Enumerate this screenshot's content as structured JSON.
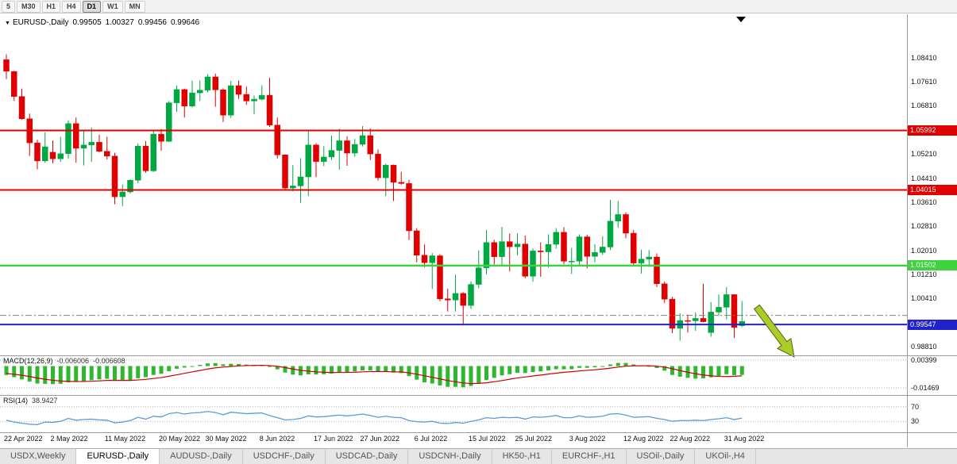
{
  "toolbar": {
    "periods": [
      "5",
      "M30",
      "H1",
      "H4",
      "D1",
      "W1",
      "MN"
    ],
    "active": "D1"
  },
  "header": {
    "dropdown": "▼",
    "symbol": "EURUSD-,Daily",
    "open": "0.99505",
    "high": "1.00327",
    "low": "0.99456",
    "close": "0.99646"
  },
  "chart_data": {
    "type": "candlestick",
    "symbol": "EURUSD-,Daily",
    "price_ticks": [
      1.0841,
      1.0761,
      1.0681,
      1.0521,
      1.0441,
      1.0361,
      1.0281,
      1.0201,
      1.0121,
      1.0041,
      0.9881
    ],
    "levels": [
      {
        "label": "1.05992",
        "value": 1.05992,
        "color": "#e00000",
        "width": 2,
        "style": "solid",
        "badge": true
      },
      {
        "label": "1.04015",
        "value": 1.04015,
        "color": "#e00000",
        "width": 2,
        "style": "solid",
        "badge": true
      },
      {
        "label": "1.01502",
        "value": 1.01502,
        "color": "#3fd23f",
        "width": 2.5,
        "style": "solid",
        "badge": true
      },
      {
        "label": "0.99547",
        "value": 0.99547,
        "color": "#2222cc",
        "width": 2,
        "style": "solid",
        "badge": true
      },
      {
        "label": "",
        "value": 0.9985,
        "color": "#808080",
        "width": 1,
        "style": "dashdot",
        "badge": false
      }
    ],
    "x_labels": [
      {
        "text": "22 Apr 2022",
        "i": 0
      },
      {
        "text": "2 May 2022",
        "i": 6
      },
      {
        "text": "11 May 2022",
        "i": 13
      },
      {
        "text": "20 May 2022",
        "i": 20
      },
      {
        "text": "30 May 2022",
        "i": 26
      },
      {
        "text": "8 Jun 2022",
        "i": 33
      },
      {
        "text": "17 Jun 2022",
        "i": 40
      },
      {
        "text": "27 Jun 2022",
        "i": 46
      },
      {
        "text": "6 Jul 2022",
        "i": 53
      },
      {
        "text": "15 Jul 2022",
        "i": 60
      },
      {
        "text": "25 Jul 2022",
        "i": 66
      },
      {
        "text": "3 Aug 2022",
        "i": 73
      },
      {
        "text": "12 Aug 2022",
        "i": 80
      },
      {
        "text": "22 Aug 2022",
        "i": 86
      },
      {
        "text": "31 Aug 2022",
        "i": 93
      }
    ],
    "candles": [
      [
        1.0834,
        1.0852,
        1.077,
        1.0796
      ],
      [
        1.0795,
        1.0797,
        1.0697,
        1.0712
      ],
      [
        1.0712,
        1.0738,
        1.0635,
        1.0638
      ],
      [
        1.0638,
        1.0655,
        1.0514,
        1.0558
      ],
      [
        1.0558,
        1.0568,
        1.047,
        1.0498
      ],
      [
        1.0498,
        1.0593,
        1.0492,
        1.0545
      ],
      [
        1.0527,
        1.0566,
        1.049,
        1.0505
      ],
      [
        1.0505,
        1.0578,
        1.0495,
        1.0522
      ],
      [
        1.0522,
        1.0632,
        1.0506,
        1.0622
      ],
      [
        1.0622,
        1.0642,
        1.0492,
        1.054
      ],
      [
        1.054,
        1.0599,
        1.0483,
        1.0551
      ],
      [
        1.0551,
        1.0609,
        1.0495,
        1.056
      ],
      [
        1.056,
        1.0585,
        1.0526,
        1.053
      ],
      [
        1.053,
        1.0578,
        1.0503,
        1.0514
      ],
      [
        1.0514,
        1.0525,
        1.0354,
        1.0379
      ],
      [
        1.0379,
        1.042,
        1.0348,
        1.0395
      ],
      [
        1.0395,
        1.0437,
        1.039,
        1.0434
      ],
      [
        1.0434,
        1.0556,
        1.0424,
        1.0547
      ],
      [
        1.0547,
        1.0564,
        1.0459,
        1.0465
      ],
      [
        1.0465,
        1.0598,
        1.0461,
        1.0587
      ],
      [
        1.0587,
        1.0604,
        1.0532,
        1.0563
      ],
      [
        1.0563,
        1.0697,
        1.0561,
        1.0691
      ],
      [
        1.0691,
        1.0748,
        1.0661,
        1.0735
      ],
      [
        1.0735,
        1.0738,
        1.0642,
        1.068
      ],
      [
        1.068,
        1.0764,
        1.0676,
        1.0724
      ],
      [
        1.0724,
        1.0765,
        1.0697,
        1.0733
      ],
      [
        1.0733,
        1.0786,
        1.0726,
        1.0777
      ],
      [
        1.0777,
        1.0788,
        1.0678,
        1.0734
      ],
      [
        1.0734,
        1.0739,
        1.0627,
        1.065
      ],
      [
        1.065,
        1.0764,
        1.0641,
        1.0748
      ],
      [
        1.0748,
        1.0765,
        1.0704,
        1.0719
      ],
      [
        1.0719,
        1.0745,
        1.0684,
        1.0697
      ],
      [
        1.0697,
        1.0715,
        1.0653,
        1.0703
      ],
      [
        1.0703,
        1.0749,
        1.0699,
        1.0716
      ],
      [
        1.0716,
        1.0774,
        1.0611,
        1.0617
      ],
      [
        1.0617,
        1.0642,
        1.0506,
        1.0518
      ],
      [
        1.0518,
        1.052,
        1.0399,
        1.0408
      ],
      [
        1.0408,
        1.0484,
        1.0397,
        1.0415
      ],
      [
        1.0415,
        1.0507,
        1.0359,
        1.0445
      ],
      [
        1.0445,
        1.0601,
        1.0381,
        1.0551
      ],
      [
        1.0551,
        1.0557,
        1.0444,
        1.0496
      ],
      [
        1.0496,
        1.0547,
        1.0481,
        1.0511
      ],
      [
        1.0511,
        1.0582,
        1.0501,
        1.0533
      ],
      [
        1.0533,
        1.0605,
        1.0469,
        1.0565
      ],
      [
        1.0565,
        1.058,
        1.0482,
        1.0524
      ],
      [
        1.0524,
        1.0571,
        1.0512,
        1.0553
      ],
      [
        1.0553,
        1.0614,
        1.0546,
        1.0582
      ],
      [
        1.0582,
        1.0606,
        1.0501,
        1.0521
      ],
      [
        1.0521,
        1.0536,
        1.0433,
        1.0442
      ],
      [
        1.0442,
        1.0489,
        1.0381,
        1.0484
      ],
      [
        1.0484,
        1.0486,
        1.0365,
        1.0427
      ],
      [
        1.0427,
        1.0462,
        1.0419,
        1.0423
      ],
      [
        1.0423,
        1.0435,
        1.0235,
        1.0266
      ],
      [
        1.0266,
        1.0275,
        1.0161,
        1.0185
      ],
      [
        1.0185,
        1.022,
        1.0145,
        1.016
      ],
      [
        1.016,
        1.0192,
        1.0072,
        1.0183
      ],
      [
        1.0183,
        1.0188,
        1.0032,
        1.004
      ],
      [
        1.004,
        1.0074,
        0.9998,
        1.0036
      ],
      [
        1.0036,
        1.012,
        0.9998,
        1.0058
      ],
      [
        1.0058,
        1.0062,
        0.9952,
        1.0018
      ],
      [
        1.0018,
        1.0098,
        1.0006,
        1.0088
      ],
      [
        1.0088,
        1.0201,
        1.0075,
        1.0143
      ],
      [
        1.0143,
        1.0269,
        1.0121,
        1.0227
      ],
      [
        1.0227,
        1.0236,
        1.0154,
        1.018
      ],
      [
        1.018,
        1.0279,
        1.0151,
        1.023
      ],
      [
        1.023,
        1.0257,
        1.0131,
        1.0213
      ],
      [
        1.0213,
        1.0258,
        1.0184,
        1.0222
      ],
      [
        1.0222,
        1.025,
        1.0108,
        1.0115
      ],
      [
        1.0115,
        1.0207,
        1.0097,
        1.0199
      ],
      [
        1.0199,
        1.0228,
        1.0113,
        1.0196
      ],
      [
        1.0196,
        1.0254,
        1.0144,
        1.0221
      ],
      [
        1.0221,
        1.0275,
        1.0207,
        1.0261
      ],
      [
        1.0261,
        1.0278,
        1.0155,
        1.0165
      ],
      [
        1.0165,
        1.0209,
        1.0123,
        1.0165
      ],
      [
        1.0165,
        1.0254,
        1.0151,
        1.0246
      ],
      [
        1.0246,
        1.0253,
        1.0141,
        1.0181
      ],
      [
        1.0181,
        1.0221,
        1.0161,
        1.0194
      ],
      [
        1.0194,
        1.0248,
        1.0186,
        1.0212
      ],
      [
        1.0212,
        1.0369,
        1.0202,
        1.0298
      ],
      [
        1.0298,
        1.0365,
        1.0276,
        1.032
      ],
      [
        1.032,
        1.0327,
        1.0241,
        1.0258
      ],
      [
        1.0258,
        1.0269,
        1.0154,
        1.0159
      ],
      [
        1.0159,
        1.0203,
        1.0124,
        1.0172
      ],
      [
        1.0172,
        1.0202,
        1.0146,
        1.0179
      ],
      [
        1.0179,
        1.0191,
        1.0079,
        1.009
      ],
      [
        1.009,
        1.0097,
        1.0026,
        1.0039
      ],
      [
        1.0039,
        1.0046,
        0.9926,
        0.9942
      ],
      [
        0.9942,
        0.9992,
        0.9901,
        0.9968
      ],
      [
        0.9968,
        0.9988,
        0.9928,
        0.9967
      ],
      [
        0.9967,
        0.9995,
        0.9934,
        0.9975
      ],
      [
        0.9975,
        1.009,
        0.9962,
        0.9964
      ],
      [
        0.9928,
        1.0029,
        0.9914,
        0.9996
      ],
      [
        0.9996,
        1.0055,
        0.9983,
        1.0012
      ],
      [
        1.0012,
        1.0079,
        0.9972,
        1.0054
      ],
      [
        1.0054,
        1.0055,
        0.991,
        0.9945
      ],
      [
        0.9951,
        1.0033,
        0.9946,
        0.9965
      ]
    ],
    "macd": {
      "title": "MACD(12,26,9)",
      "main_value": "-0.006006",
      "signal_value": "-0.006608",
      "ticks": [
        {
          "label": "0.00399",
          "value": 0.00399
        },
        {
          "label": "-0.01469",
          "value": -0.01469
        }
      ],
      "hist": [
        -0.006,
        -0.0075,
        -0.009,
        -0.0105,
        -0.0118,
        -0.012,
        -0.0122,
        -0.012,
        -0.011,
        -0.0108,
        -0.0102,
        -0.0095,
        -0.009,
        -0.0086,
        -0.0095,
        -0.0098,
        -0.0095,
        -0.0082,
        -0.0075,
        -0.006,
        -0.0052,
        -0.0035,
        -0.0018,
        -0.001,
        0,
        0.0008,
        0.0018,
        0.002,
        0.0012,
        0.0015,
        0.0014,
        0.001,
        0.0008,
        0.0008,
        -0.0004,
        -0.0022,
        -0.0044,
        -0.0058,
        -0.0063,
        -0.0056,
        -0.0057,
        -0.0055,
        -0.005,
        -0.0043,
        -0.0041,
        -0.0036,
        -0.0029,
        -0.0029,
        -0.0037,
        -0.0038,
        -0.0044,
        -0.0047,
        -0.0068,
        -0.0092,
        -0.011,
        -0.0118,
        -0.0131,
        -0.014,
        -0.014,
        -0.0143,
        -0.0134,
        -0.0117,
        -0.0094,
        -0.008,
        -0.0063,
        -0.0055,
        -0.0046,
        -0.0047,
        -0.004,
        -0.0036,
        -0.0029,
        -0.0021,
        -0.0022,
        -0.0021,
        -0.0012,
        -0.0012,
        -0.0008,
        -0.0003,
        0.0011,
        0.0021,
        0.0021,
        0.0011,
        0.0005,
        0.0001,
        -0.0013,
        -0.0031,
        -0.006,
        -0.0072,
        -0.008,
        -0.0085,
        -0.0083,
        -0.0076,
        -0.0067,
        -0.0055,
        -0.0061,
        -0.006
      ],
      "signal": [
        -0.005,
        -0.0055,
        -0.0062,
        -0.0071,
        -0.0081,
        -0.0089,
        -0.0096,
        -0.0101,
        -0.0103,
        -0.0104,
        -0.0104,
        -0.0102,
        -0.01,
        -0.0097,
        -0.0097,
        -0.0097,
        -0.0097,
        -0.0094,
        -0.009,
        -0.0084,
        -0.0078,
        -0.0069,
        -0.0059,
        -0.0049,
        -0.0039,
        -0.003,
        -0.002,
        -0.0012,
        -0.0007,
        -0.0003,
        0.0001,
        0.0003,
        0.0004,
        0.0005,
        0.0003,
        -0.0002,
        -0.001,
        -0.002,
        -0.0029,
        -0.0034,
        -0.0039,
        -0.0042,
        -0.0044,
        -0.0043,
        -0.0043,
        -0.0042,
        -0.0039,
        -0.0037,
        -0.0037,
        -0.0037,
        -0.0039,
        -0.004,
        -0.0046,
        -0.0055,
        -0.0066,
        -0.0076,
        -0.0087,
        -0.0098,
        -0.0106,
        -0.0114,
        -0.0118,
        -0.0117,
        -0.0113,
        -0.0106,
        -0.0098,
        -0.0089,
        -0.008,
        -0.0074,
        -0.0067,
        -0.0061,
        -0.0054,
        -0.0048,
        -0.0042,
        -0.0038,
        -0.0033,
        -0.0029,
        -0.0025,
        -0.002,
        -0.0014,
        -0.0007,
        -0.0001,
        0.0001,
        0.0002,
        0.0002,
        -0.0001,
        -0.0007,
        -0.0018,
        -0.003,
        -0.0042,
        -0.0052,
        -0.006,
        -0.0066,
        -0.007,
        -0.0071,
        -0.0069,
        -0.0066
      ]
    },
    "rsi": {
      "title": "RSI(14)",
      "value": "38.9427",
      "levels": [
        {
          "label": "70",
          "value": 70
        },
        {
          "label": "30",
          "value": 30
        }
      ],
      "series": [
        33,
        28,
        25,
        22,
        21,
        28,
        27,
        30,
        38,
        33,
        35,
        36,
        34,
        33,
        26,
        28,
        32,
        41,
        36,
        44,
        42,
        51,
        54,
        50,
        53,
        54,
        57,
        54,
        48,
        55,
        53,
        51,
        52,
        53,
        46,
        40,
        34,
        35,
        38,
        45,
        42,
        43,
        45,
        47,
        45,
        47,
        50,
        46,
        41,
        44,
        41,
        40,
        32,
        29,
        28,
        30,
        25,
        24,
        27,
        25,
        30,
        34,
        40,
        38,
        41,
        40,
        41,
        36,
        42,
        41,
        43,
        46,
        40,
        40,
        45,
        41,
        42,
        44,
        50,
        51,
        47,
        41,
        42,
        43,
        38,
        35,
        30,
        32,
        32,
        33,
        32,
        35,
        37,
        40,
        35,
        38.9
      ]
    }
  },
  "annotations": {
    "arrow": {
      "tail": [
        953,
        387
      ],
      "tip": [
        1000,
        450
      ]
    },
    "shift_marker": "▼"
  },
  "tabs": {
    "active_index": 1,
    "items": [
      "USDX,Weekly",
      "EURUSD-,Daily",
      "AUDUSD-,Daily",
      "USDCHF-,Daily",
      "USDCAD-,Daily",
      "USDCNH-,Daily",
      "HK50-,H1",
      "EURCHF-,H1",
      "USOil-,Daily",
      "UKOil-,H4"
    ]
  },
  "colors": {
    "up": "#00a843",
    "down": "#e00000",
    "macd_hist": "#2db82d",
    "macd_signal": "#cc0000",
    "rsi_line": "#5b9bd5",
    "grid_dotted": "#b0b0b0",
    "arrow_fill": "#aace27",
    "arrow_stroke": "#55610a"
  }
}
